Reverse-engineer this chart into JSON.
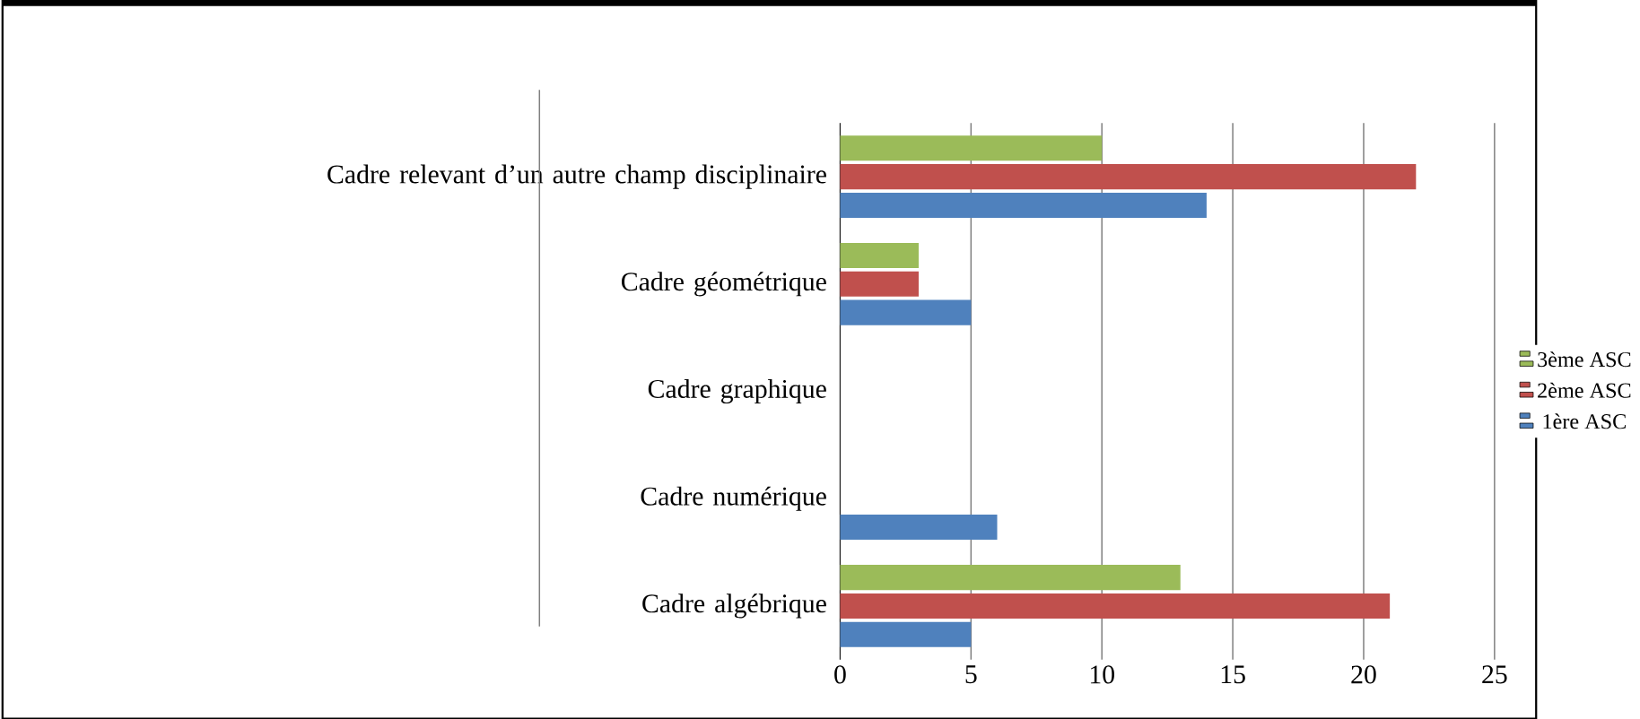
{
  "chart_data": {
    "type": "bar",
    "orientation": "horizontal",
    "categories": [
      "Cadre relevant d’un autre champ disciplinaire",
      "Cadre géométrique",
      "Cadre graphique",
      "Cadre numérique",
      "Cadre algébrique"
    ],
    "series": [
      {
        "name": "1ère ASC",
        "color": "#4f81bd",
        "values": [
          14,
          5,
          0,
          6,
          5
        ]
      },
      {
        "name": "2ème ASC",
        "color": "#c0504d",
        "values": [
          22,
          3,
          0,
          0,
          21
        ]
      },
      {
        "name": "3ème ASC",
        "color": "#9bbb59",
        "values": [
          10,
          3,
          0,
          0,
          13
        ]
      }
    ],
    "xlim": [
      0,
      25
    ],
    "xticks": [
      0,
      5,
      10,
      15,
      20,
      25
    ],
    "grid": "x",
    "legend": "right"
  }
}
